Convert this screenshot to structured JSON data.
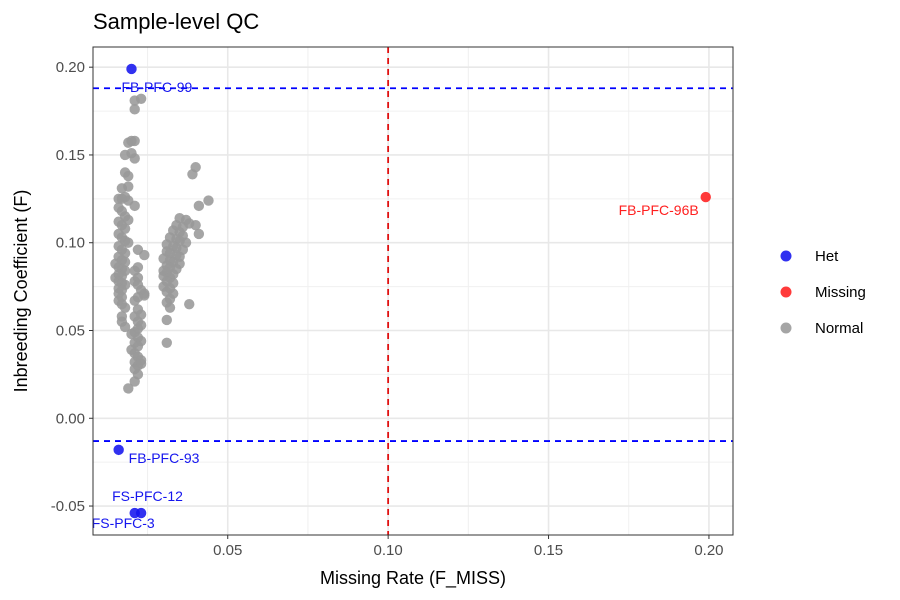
{
  "chart_data": {
    "type": "scatter",
    "title": "Sample-level QC",
    "xlabel": "Missing Rate (F_MISS)",
    "ylabel": "Inbreeding Coefficient (F)",
    "xlim": [
      0.008,
      0.2075
    ],
    "ylim": [
      -0.0665,
      0.2115
    ],
    "x_ticks": [
      0.05,
      0.1,
      0.15,
      0.2
    ],
    "x_tick_labels": [
      "0.05",
      "0.10",
      "0.15",
      "0.20"
    ],
    "y_ticks": [
      -0.05,
      0.0,
      0.05,
      0.1,
      0.15,
      0.2
    ],
    "y_tick_labels": [
      "-0.05",
      "0.00",
      "0.05",
      "0.10",
      "0.15",
      "0.20"
    ],
    "grid": true,
    "legend_position": "right",
    "reference_lines": [
      {
        "axis": "y",
        "value": 0.188,
        "color": "#0000ff",
        "style": "dashed"
      },
      {
        "axis": "y",
        "value": -0.013,
        "color": "#0000ff",
        "style": "dashed"
      },
      {
        "axis": "x",
        "value": 0.1,
        "color": "#e01010",
        "style": "dashed"
      }
    ],
    "series": [
      {
        "name": "Het",
        "color": "#1515ee",
        "points": [
          [
            0.02,
            0.199
          ],
          [
            0.016,
            -0.018
          ],
          [
            0.023,
            -0.054
          ],
          [
            0.021,
            -0.054
          ]
        ]
      },
      {
        "name": "Missing",
        "color": "#ff1f1f",
        "points": [
          [
            0.199,
            0.126
          ]
        ]
      },
      {
        "name": "Normal",
        "color": "#999999",
        "points": [
          [
            0.021,
            0.181
          ],
          [
            0.023,
            0.182
          ],
          [
            0.021,
            0.176
          ],
          [
            0.019,
            0.157
          ],
          [
            0.02,
            0.158
          ],
          [
            0.021,
            0.158
          ],
          [
            0.018,
            0.15
          ],
          [
            0.02,
            0.151
          ],
          [
            0.021,
            0.148
          ],
          [
            0.018,
            0.14
          ],
          [
            0.019,
            0.138
          ],
          [
            0.017,
            0.131
          ],
          [
            0.019,
            0.132
          ],
          [
            0.016,
            0.125
          ],
          [
            0.017,
            0.125
          ],
          [
            0.018,
            0.126
          ],
          [
            0.019,
            0.124
          ],
          [
            0.021,
            0.121
          ],
          [
            0.016,
            0.12
          ],
          [
            0.017,
            0.118
          ],
          [
            0.018,
            0.115
          ],
          [
            0.019,
            0.113
          ],
          [
            0.016,
            0.112
          ],
          [
            0.017,
            0.11
          ],
          [
            0.018,
            0.108
          ],
          [
            0.016,
            0.105
          ],
          [
            0.017,
            0.103
          ],
          [
            0.018,
            0.101
          ],
          [
            0.019,
            0.1
          ],
          [
            0.016,
            0.098
          ],
          [
            0.017,
            0.096
          ],
          [
            0.018,
            0.094
          ],
          [
            0.016,
            0.092
          ],
          [
            0.017,
            0.09
          ],
          [
            0.018,
            0.089
          ],
          [
            0.015,
            0.088
          ],
          [
            0.016,
            0.086
          ],
          [
            0.017,
            0.085
          ],
          [
            0.018,
            0.084
          ],
          [
            0.016,
            0.082
          ],
          [
            0.017,
            0.081
          ],
          [
            0.015,
            0.08
          ],
          [
            0.016,
            0.078
          ],
          [
            0.017,
            0.077
          ],
          [
            0.018,
            0.076
          ],
          [
            0.016,
            0.074
          ],
          [
            0.017,
            0.073
          ],
          [
            0.016,
            0.071
          ],
          [
            0.017,
            0.069
          ],
          [
            0.016,
            0.067
          ],
          [
            0.017,
            0.065
          ],
          [
            0.018,
            0.063
          ],
          [
            0.017,
            0.058
          ],
          [
            0.017,
            0.055
          ],
          [
            0.018,
            0.052
          ],
          [
            0.022,
            0.096
          ],
          [
            0.024,
            0.093
          ],
          [
            0.022,
            0.086
          ],
          [
            0.021,
            0.084
          ],
          [
            0.022,
            0.08
          ],
          [
            0.021,
            0.078
          ],
          [
            0.022,
            0.076
          ],
          [
            0.023,
            0.073
          ],
          [
            0.024,
            0.071
          ],
          [
            0.024,
            0.07
          ],
          [
            0.022,
            0.069
          ],
          [
            0.021,
            0.067
          ],
          [
            0.022,
            0.062
          ],
          [
            0.023,
            0.059
          ],
          [
            0.021,
            0.058
          ],
          [
            0.022,
            0.055
          ],
          [
            0.023,
            0.053
          ],
          [
            0.022,
            0.051
          ],
          [
            0.021,
            0.049
          ],
          [
            0.022,
            0.046
          ],
          [
            0.023,
            0.044
          ],
          [
            0.021,
            0.043
          ],
          [
            0.022,
            0.041
          ],
          [
            0.02,
            0.039
          ],
          [
            0.021,
            0.037
          ],
          [
            0.022,
            0.035
          ],
          [
            0.023,
            0.033
          ],
          [
            0.021,
            0.032
          ],
          [
            0.022,
            0.03
          ],
          [
            0.023,
            0.031
          ],
          [
            0.021,
            0.028
          ],
          [
            0.022,
            0.025
          ],
          [
            0.021,
            0.021
          ],
          [
            0.019,
            0.017
          ],
          [
            0.02,
            0.048
          ],
          [
            0.04,
            0.143
          ],
          [
            0.039,
            0.139
          ],
          [
            0.044,
            0.124
          ],
          [
            0.041,
            0.121
          ],
          [
            0.035,
            0.114
          ],
          [
            0.037,
            0.113
          ],
          [
            0.034,
            0.11
          ],
          [
            0.036,
            0.109
          ],
          [
            0.038,
            0.111
          ],
          [
            0.04,
            0.11
          ],
          [
            0.033,
            0.107
          ],
          [
            0.035,
            0.106
          ],
          [
            0.036,
            0.104
          ],
          [
            0.041,
            0.105
          ],
          [
            0.032,
            0.103
          ],
          [
            0.034,
            0.102
          ],
          [
            0.035,
            0.101
          ],
          [
            0.037,
            0.1
          ],
          [
            0.031,
            0.099
          ],
          [
            0.033,
            0.098
          ],
          [
            0.034,
            0.097
          ],
          [
            0.036,
            0.096
          ],
          [
            0.031,
            0.095
          ],
          [
            0.032,
            0.094
          ],
          [
            0.034,
            0.093
          ],
          [
            0.035,
            0.092
          ],
          [
            0.03,
            0.091
          ],
          [
            0.032,
            0.09
          ],
          [
            0.033,
            0.089
          ],
          [
            0.035,
            0.088
          ],
          [
            0.031,
            0.087
          ],
          [
            0.032,
            0.086
          ],
          [
            0.034,
            0.085
          ],
          [
            0.03,
            0.084
          ],
          [
            0.031,
            0.083
          ],
          [
            0.033,
            0.082
          ],
          [
            0.03,
            0.081
          ],
          [
            0.032,
            0.08
          ],
          [
            0.031,
            0.078
          ],
          [
            0.033,
            0.077
          ],
          [
            0.03,
            0.075
          ],
          [
            0.032,
            0.074
          ],
          [
            0.031,
            0.072
          ],
          [
            0.033,
            0.071
          ],
          [
            0.032,
            0.068
          ],
          [
            0.031,
            0.066
          ],
          [
            0.032,
            0.063
          ],
          [
            0.038,
            0.065
          ],
          [
            0.031,
            0.056
          ],
          [
            0.031,
            0.043
          ]
        ]
      }
    ],
    "labels": [
      {
        "text": "FB-PFC-99",
        "x": 0.02,
        "y": 0.199,
        "series": "Het"
      },
      {
        "text": "FB-PFC-96B",
        "x": 0.199,
        "y": 0.126,
        "series": "Missing"
      },
      {
        "text": "FB-PFC-93",
        "x": 0.016,
        "y": -0.018,
        "series": "Het"
      },
      {
        "text": "FS-PFC-12",
        "x": 0.023,
        "y": -0.054,
        "series": "Het"
      },
      {
        "text": "FS-PFC-3",
        "x": 0.021,
        "y": -0.054,
        "series": "Het"
      }
    ]
  }
}
